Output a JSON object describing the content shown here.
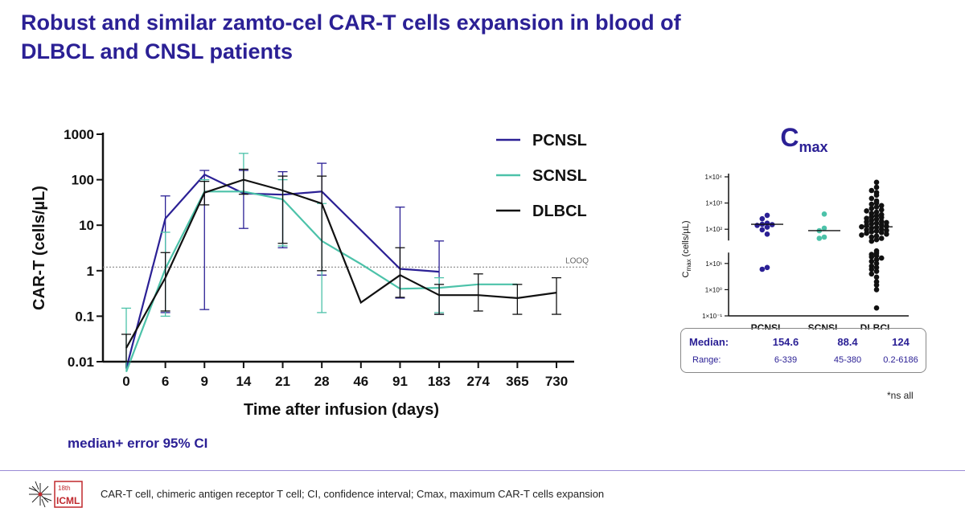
{
  "slide": {
    "title_line1": "Robust and similar zamto-cel CAR-T cells expansion in blood of",
    "title_line2": "DLBCL and CNSL patients",
    "footnote": "median+ error 95% CI",
    "footer_text": "CAR-T cell, chimeric antigen receptor T cell; CI, confidence interval; Cmax, maximum CAR-T cells expansion",
    "logo_line1": "18th",
    "logo_line2": "ICML",
    "ns_note": "*ns all"
  },
  "chart_data": [
    {
      "type": "line",
      "xlabel": "Time after infusion (days)",
      "ylabel": "CAR-T (cells/µL)",
      "yscale": "log",
      "ylim": [
        0.01,
        1000
      ],
      "yticks": [
        "0.01",
        "0.1",
        "1",
        "10",
        "100",
        "1000"
      ],
      "categories": [
        "0",
        "6",
        "9",
        "14",
        "21",
        "28",
        "46",
        "91",
        "183",
        "274",
        "365",
        "730"
      ],
      "reference_line": {
        "label": "LOOQ",
        "value": 1.2
      },
      "legend_position": "top-right",
      "series": [
        {
          "name": "PCNSL",
          "color": "#2b2095",
          "values": [
            0.007,
            14,
            130,
            50,
            47,
            55,
            null,
            1.1,
            0.95,
            null,
            null,
            null
          ],
          "ci_low": [
            null,
            0.12,
            0.14,
            8.5,
            3.2,
            0.8,
            null,
            0.25,
            0.11,
            null,
            null,
            null
          ],
          "ci_high": [
            null,
            44,
            160,
            160,
            150,
            230,
            null,
            25,
            4.5,
            null,
            null,
            null
          ]
        },
        {
          "name": "SCNSL",
          "color": "#4cc2a9",
          "values": [
            0.006,
            1.1,
            55,
            55,
            37,
            4.5,
            1.4,
            0.4,
            0.42,
            0.5,
            0.5,
            null
          ],
          "ci_low": [
            null,
            0.1,
            null,
            null,
            3.5,
            0.12,
            null,
            null,
            0.12,
            null,
            null,
            null
          ],
          "ci_high": [
            0.15,
            7,
            100,
            380,
            100,
            30,
            null,
            null,
            0.7,
            null,
            null,
            null
          ]
        },
        {
          "name": "DLBCL",
          "color": "#111111",
          "values": [
            0.02,
            0.7,
            52,
            100,
            58,
            30,
            0.2,
            0.8,
            0.29,
            0.29,
            0.25,
            0.33
          ],
          "ci_low": [
            0.01,
            0.13,
            28,
            48,
            4,
            1,
            null,
            0.26,
            0.11,
            0.13,
            0.11,
            0.11
          ],
          "ci_high": [
            0.04,
            2.5,
            92,
            170,
            120,
            120,
            null,
            3.2,
            0.5,
            0.85,
            0.5,
            0.7
          ]
        }
      ]
    },
    {
      "type": "scatter",
      "title": "Cmax",
      "title_main": "C",
      "title_sub": "max",
      "ylabel": "Cmax (cells/µL)",
      "ylabel_main": "C",
      "ylabel_sub": "max",
      "ylabel_rest": " (cells/µL)",
      "yscale": "log",
      "ylim": [
        0.1,
        10000
      ],
      "yticks": [
        "1×10⁻¹",
        "1×10⁰",
        "1×10¹",
        "1×10²",
        "1×10³",
        "1×10⁴"
      ],
      "y_axis_break": true,
      "categories": [
        "PCNSL",
        "SCNSL",
        "DLBCL"
      ],
      "colors": [
        "#2b2095",
        "#4cc2a9",
        "#111111"
      ],
      "medians": [
        154.6,
        88.4,
        124
      ],
      "median_labels": [
        "154.6",
        "88.4",
        "124"
      ],
      "ranges": [
        "6-339",
        "45-380",
        "0.2-6186"
      ],
      "row_labels": [
        "Median:",
        "Range:"
      ],
      "points": [
        [
          339,
          250,
          170,
          154,
          150,
          140,
          120,
          95,
          65,
          7,
          6
        ],
        [
          380,
          110,
          88,
          50,
          45
        ],
        [
          6186,
          4000,
          3000,
          2500,
          2000,
          1500,
          1200,
          1000,
          900,
          800,
          700,
          620,
          550,
          500,
          450,
          400,
          360,
          330,
          300,
          280,
          260,
          240,
          220,
          200,
          190,
          180,
          170,
          160,
          150,
          140,
          130,
          124,
          118,
          110,
          100,
          95,
          90,
          85,
          80,
          75,
          70,
          65,
          60,
          55,
          50,
          45,
          40,
          35,
          30,
          25,
          22,
          20,
          18,
          16,
          14,
          12,
          10,
          8,
          7,
          6,
          5,
          4,
          3,
          2,
          1.5,
          1,
          0.2
        ]
      ]
    }
  ]
}
